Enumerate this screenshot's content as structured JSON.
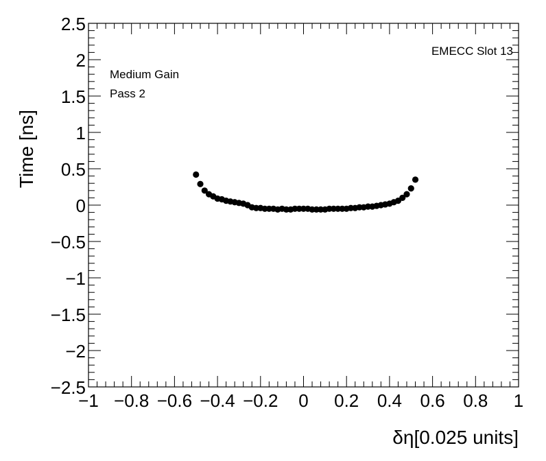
{
  "chart_data": {
    "type": "scatter",
    "title": "",
    "xlabel": "δη[0.025 units]",
    "ylabel": "Time [ns]",
    "xlim": [
      -1,
      1
    ],
    "ylim": [
      -2.5,
      2.5
    ],
    "x_tick_labels": [
      "−1",
      "−0.8",
      "−0.6",
      "−0.4",
      "−0.2",
      "0",
      "0.2",
      "0.4",
      "0.6",
      "0.8",
      "1"
    ],
    "y_tick_labels": [
      "−2.5",
      "−2",
      "−1.5",
      "−1",
      "−0.5",
      "0",
      "0.5",
      "1",
      "1.5",
      "2",
      "2.5"
    ],
    "x_ticks": [
      -1,
      -0.8,
      -0.6,
      -0.4,
      -0.2,
      0,
      0.2,
      0.4,
      0.6,
      0.8,
      1
    ],
    "y_ticks": [
      -2.5,
      -2,
      -1.5,
      -1,
      -0.5,
      0,
      0.5,
      1,
      1.5,
      2,
      2.5
    ],
    "grid": false,
    "annotations": {
      "top_right": "EMECC Slot 13",
      "line1": "Medium Gain",
      "line2": "Pass 2"
    },
    "series": [
      {
        "marker_color": "#000000",
        "x": [
          -0.5,
          -0.48,
          -0.46,
          -0.44,
          -0.42,
          -0.4,
          -0.38,
          -0.36,
          -0.34,
          -0.32,
          -0.3,
          -0.28,
          -0.26,
          -0.24,
          -0.22,
          -0.2,
          -0.18,
          -0.16,
          -0.14,
          -0.12,
          -0.1,
          -0.08,
          -0.06,
          -0.04,
          -0.02,
          0,
          0.02,
          0.04,
          0.06,
          0.08,
          0.1,
          0.12,
          0.14,
          0.16,
          0.18,
          0.2,
          0.22,
          0.24,
          0.26,
          0.28,
          0.3,
          0.32,
          0.34,
          0.36,
          0.38,
          0.4,
          0.42,
          0.44,
          0.46,
          0.48,
          0.5,
          0.52
        ],
        "y": [
          0.42,
          0.29,
          0.2,
          0.15,
          0.12,
          0.09,
          0.08,
          0.06,
          0.05,
          0.04,
          0.03,
          0.02,
          0.0,
          -0.03,
          -0.04,
          -0.04,
          -0.05,
          -0.05,
          -0.05,
          -0.06,
          -0.05,
          -0.06,
          -0.06,
          -0.05,
          -0.05,
          -0.05,
          -0.05,
          -0.06,
          -0.06,
          -0.06,
          -0.06,
          -0.05,
          -0.05,
          -0.05,
          -0.05,
          -0.05,
          -0.04,
          -0.04,
          -0.03,
          -0.03,
          -0.02,
          -0.02,
          -0.01,
          0.0,
          0.01,
          0.02,
          0.04,
          0.06,
          0.1,
          0.15,
          0.23,
          0.35
        ]
      }
    ]
  }
}
